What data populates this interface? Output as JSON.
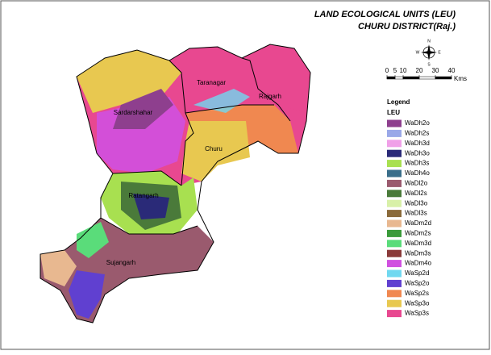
{
  "title": [
    "LAND ECOLOGICAL UNITS (LEU)",
    "CHURU DISTRICT(Raj.)"
  ],
  "compass": {
    "n": "N",
    "s": "S",
    "e": "E",
    "w": "W"
  },
  "scale_bar": {
    "ticks": [
      0,
      5,
      10,
      20,
      30,
      40
    ],
    "unit": "Kms"
  },
  "legend": {
    "title": "Legend",
    "subtitle": "LEU",
    "items": [
      {
        "label": "WaDh2o",
        "color": "#8e3f8e"
      },
      {
        "label": "WaDh2s",
        "color": "#9aa8e8"
      },
      {
        "label": "WaDh3d",
        "color": "#f0a0e8"
      },
      {
        "label": "WaDh3o",
        "color": "#2a2a78"
      },
      {
        "label": "WaDh3s",
        "color": "#a8e050"
      },
      {
        "label": "WaDh4o",
        "color": "#3a6e8a"
      },
      {
        "label": "WaDl2o",
        "color": "#9a5a6e"
      },
      {
        "label": "WaDl2s",
        "color": "#4a7a3a"
      },
      {
        "label": "WaDl3o",
        "color": "#d8f0a8"
      },
      {
        "label": "WaDl3s",
        "color": "#8a6a3a"
      },
      {
        "label": "WaDm2d",
        "color": "#e8b890"
      },
      {
        "label": "WaDm2s",
        "color": "#3a9a3a"
      },
      {
        "label": "WaDm3d",
        "color": "#5adc7a"
      },
      {
        "label": "WaDm3s",
        "color": "#8a3a3a"
      },
      {
        "label": "WaDm4o",
        "color": "#d050e0"
      },
      {
        "label": "WaSp2d",
        "color": "#70d8f0"
      },
      {
        "label": "WaSp2o",
        "color": "#6040d0"
      },
      {
        "label": "WaSp2s",
        "color": "#f08850"
      },
      {
        "label": "WaSp3o",
        "color": "#e8c850"
      },
      {
        "label": "WaSp3s",
        "color": "#e84890"
      }
    ]
  },
  "regions": [
    "Sardarshahar",
    "Taranagar",
    "Rajgarh",
    "Churu",
    "Ratangarh",
    "Sujangarh"
  ]
}
